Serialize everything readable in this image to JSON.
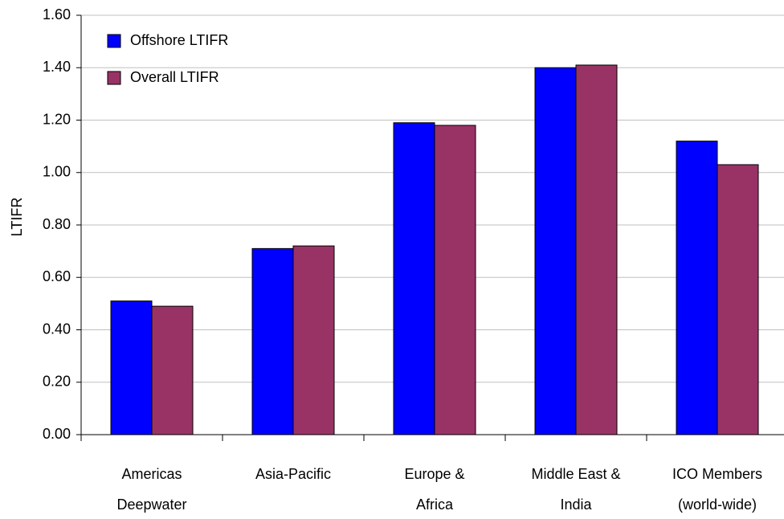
{
  "chart_data": {
    "type": "bar",
    "y_label": "LTIFR",
    "categories": [
      [
        "Americas",
        "Deepwater"
      ],
      [
        "Asia-Pacific"
      ],
      [
        "Europe &",
        "Africa"
      ],
      [
        "Middle East &",
        "India"
      ],
      [
        "ICO Members",
        "(world-wide)"
      ]
    ],
    "series": [
      {
        "name": "Offshore LTIFR",
        "color": "#0000ff",
        "values": [
          0.51,
          0.71,
          1.19,
          1.4,
          1.12
        ]
      },
      {
        "name": "Overall LTIFR",
        "color": "#993366",
        "values": [
          0.49,
          0.72,
          1.18,
          1.41,
          1.03
        ]
      }
    ],
    "ylim": [
      0,
      1.6
    ],
    "yticks": [
      {
        "value": 0,
        "label": "0.00"
      },
      {
        "value": 0.2,
        "label": "0.20"
      },
      {
        "value": 0.4,
        "label": "0.40"
      },
      {
        "value": 0.6,
        "label": "0.60"
      },
      {
        "value": 0.8,
        "label": "0.80"
      },
      {
        "value": 1,
        "label": "1.00"
      },
      {
        "value": 1.2,
        "label": "1.20"
      },
      {
        "value": 1.4,
        "label": "1.40"
      },
      {
        "value": 1.6,
        "label": "1.60"
      }
    ],
    "grid": true,
    "legend": "top-left"
  }
}
